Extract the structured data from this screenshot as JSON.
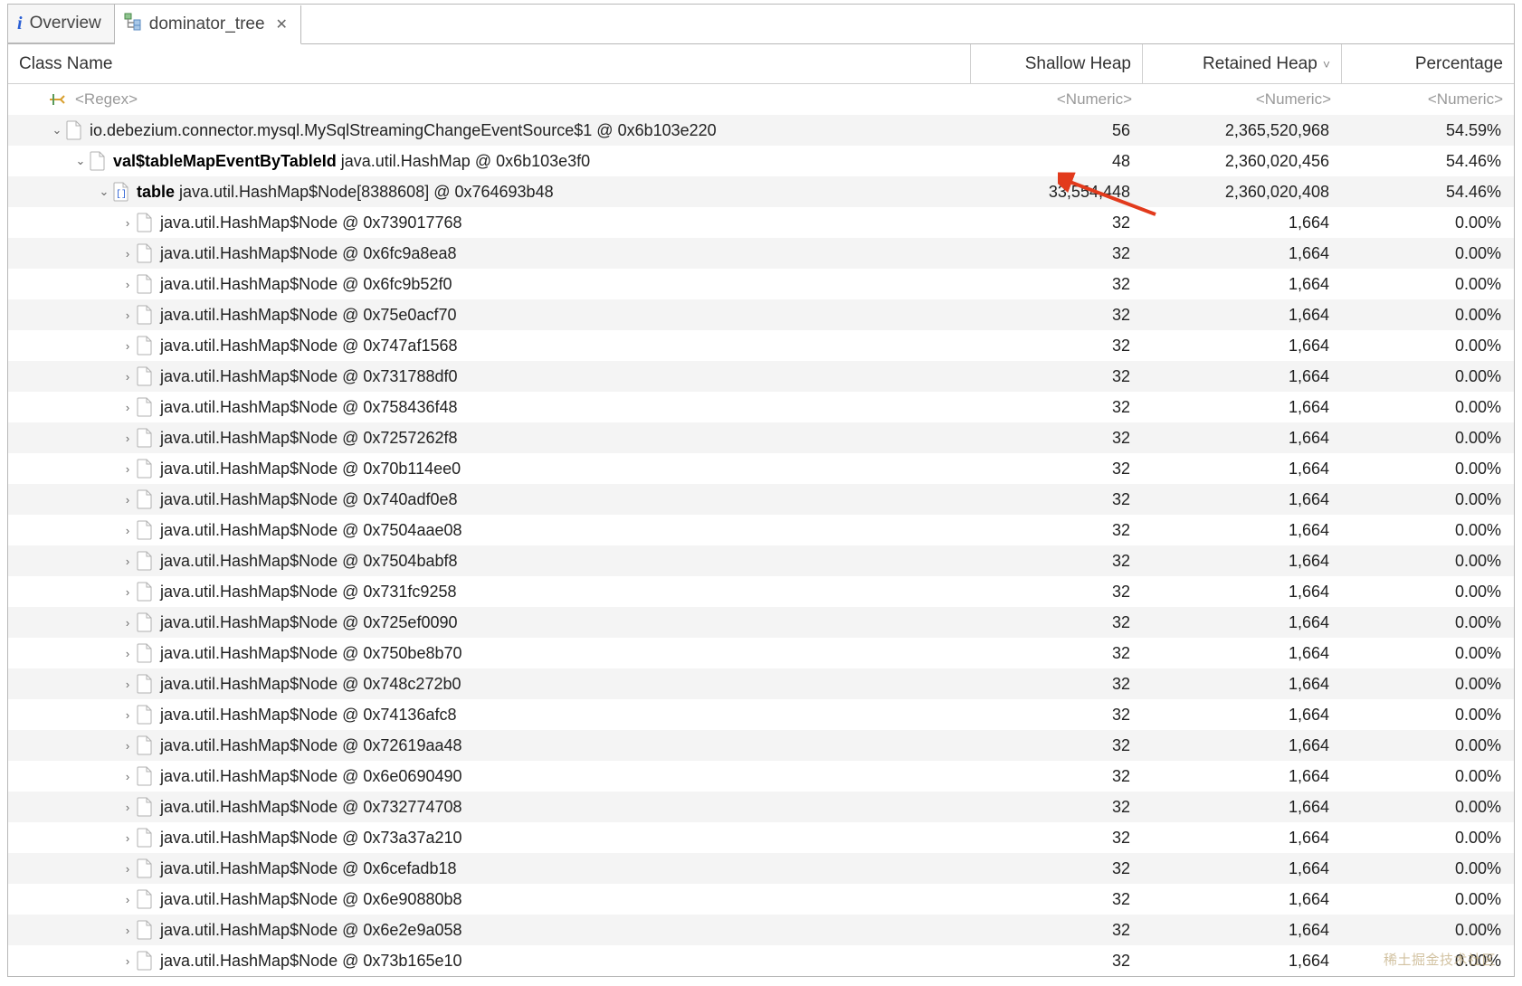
{
  "tabs": {
    "overview": "Overview",
    "dominator": "dominator_tree"
  },
  "columns": {
    "class_name": "Class Name",
    "shallow": "Shallow Heap",
    "retained": "Retained Heap",
    "percentage": "Percentage"
  },
  "filter": {
    "regex": "<Regex>",
    "numeric": "<Numeric>"
  },
  "rows_top": [
    {
      "indent": 1,
      "expand": "open",
      "bold": false,
      "label": "io.debezium.connector.mysql.MySqlStreamingChangeEventSource$1 @ 0x6b103e220",
      "shallow": "56",
      "retained": "2,365,520,968",
      "pct": "54.59%"
    },
    {
      "indent": 2,
      "expand": "open",
      "bold": true,
      "bold_label": "val$tableMapEventByTableId",
      "label_rest": " java.util.HashMap @ 0x6b103e3f0",
      "shallow": "48",
      "retained": "2,360,020,456",
      "pct": "54.46%"
    },
    {
      "indent": 3,
      "expand": "open",
      "bold": true,
      "bold_label": "table",
      "label_rest": " java.util.HashMap$Node[8388608] @ 0x764693b48",
      "shallow": "33,554,448",
      "retained": "2,360,020,408",
      "pct": "54.46%",
      "array_icon": true
    }
  ],
  "child_rows": [
    {
      "addr": "0x739017768"
    },
    {
      "addr": "0x6fc9a8ea8"
    },
    {
      "addr": "0x6fc9b52f0"
    },
    {
      "addr": "0x75e0acf70"
    },
    {
      "addr": "0x747af1568"
    },
    {
      "addr": "0x731788df0"
    },
    {
      "addr": "0x758436f48"
    },
    {
      "addr": "0x7257262f8"
    },
    {
      "addr": "0x70b114ee0"
    },
    {
      "addr": "0x740adf0e8"
    },
    {
      "addr": "0x7504aae08"
    },
    {
      "addr": "0x7504babf8"
    },
    {
      "addr": "0x731fc9258"
    },
    {
      "addr": "0x725ef0090"
    },
    {
      "addr": "0x750be8b70"
    },
    {
      "addr": "0x748c272b0"
    },
    {
      "addr": "0x74136afc8"
    },
    {
      "addr": "0x72619aa48"
    },
    {
      "addr": "0x6e0690490"
    },
    {
      "addr": "0x732774708"
    },
    {
      "addr": "0x73a37a210"
    },
    {
      "addr": "0x6cefadb18"
    },
    {
      "addr": "0x6e90880b8"
    },
    {
      "addr": "0x6e2e9a058"
    },
    {
      "addr": "0x73b165e10"
    }
  ],
  "child_template": {
    "prefix": "java.util.HashMap$Node @ ",
    "shallow": "32",
    "retained": "1,664",
    "pct": "0.00%"
  },
  "watermark": "稀土掘金技术社区",
  "colors": {
    "border": "#b8b8b8",
    "alt_row": "#f4f4f4",
    "text": "#333333",
    "muted": "#999999",
    "arrow": "#e23a1c"
  }
}
